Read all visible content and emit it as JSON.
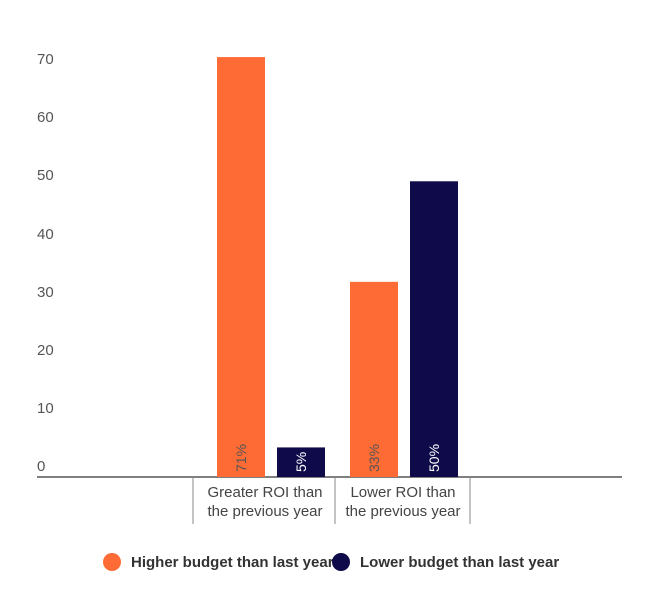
{
  "chart_data": {
    "type": "bar",
    "categories": [
      [
        "Greater ROI than",
        "the previous year"
      ],
      [
        "Lower ROI than",
        "the previous year"
      ]
    ],
    "series": [
      {
        "name": "Higher budget than last year",
        "color": "#FF6B35",
        "values": [
          71,
          33
        ]
      },
      {
        "name": "Lower budget than last year",
        "color": "#0F0A4A",
        "values": [
          5,
          50
        ]
      }
    ],
    "data_labels": [
      [
        "71%",
        "33%"
      ],
      [
        "5%",
        "50%"
      ]
    ],
    "yticks": [
      "0",
      "10",
      "20",
      "30",
      "40",
      "50",
      "60",
      "70"
    ],
    "ylim": [
      0,
      70
    ],
    "grid": false,
    "legend": "bottom-center",
    "title": "",
    "xlabel": "",
    "ylabel": ""
  }
}
